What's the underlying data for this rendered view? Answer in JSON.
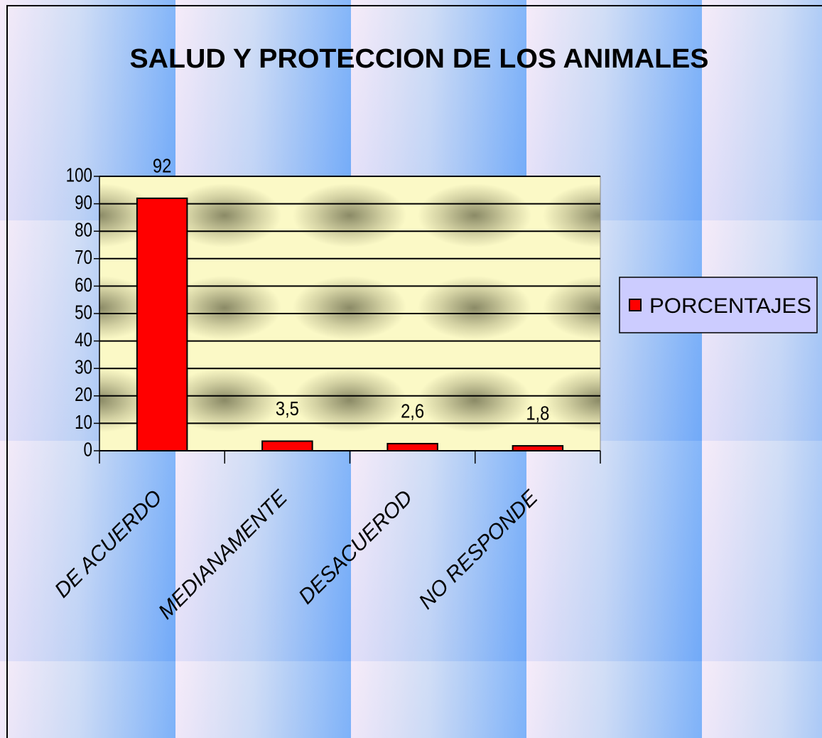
{
  "chart_data": {
    "type": "bar",
    "title": "SALUD Y PROTECCION DE LOS ANIMALES",
    "categories": [
      "DE ACUERDO",
      "MEDIANAMENTE",
      "DESACUEROD",
      "NO RESPONDE"
    ],
    "series": [
      {
        "name": "PORCENTAJES",
        "color": "#ff0000",
        "values": [
          92,
          3.5,
          2.6,
          1.8
        ],
        "value_labels": [
          "92",
          "3,5",
          "2,6",
          "1,8"
        ]
      }
    ],
    "ylim": [
      0,
      100
    ],
    "yticks": [
      0,
      10,
      20,
      30,
      40,
      50,
      60,
      70,
      80,
      90,
      100
    ],
    "grid": true,
    "legend": "right"
  }
}
